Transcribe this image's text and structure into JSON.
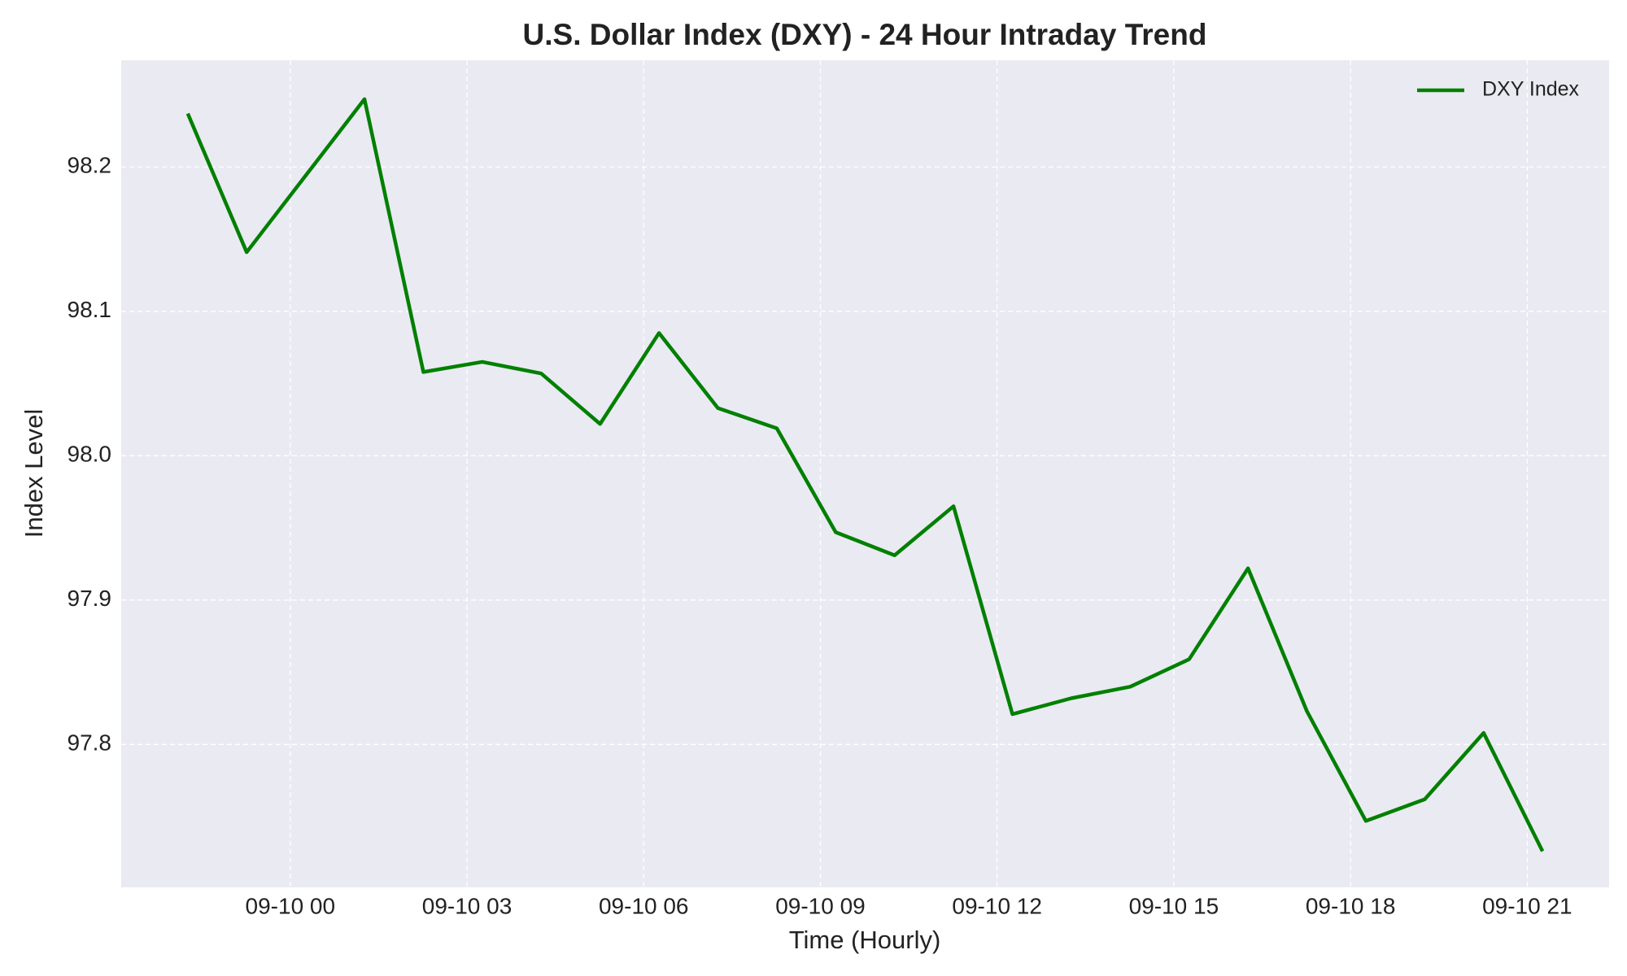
{
  "chart_data": {
    "type": "line",
    "title": "U.S. Dollar Index (DXY) - 24 Hour Intraday Trend",
    "x_label": "Time (Hourly)",
    "y_label": "Index Level",
    "x": [
      -1.74,
      -0.74,
      0.26,
      1.26,
      2.26,
      3.26,
      4.26,
      5.26,
      6.26,
      7.26,
      8.26,
      9.26,
      10.26,
      11.26,
      12.26,
      13.26,
      14.26,
      15.26,
      16.26,
      17.26,
      18.26,
      19.26,
      20.26,
      21.26
    ],
    "series": [
      {
        "name": "DXY Index",
        "color": "#008000",
        "values": [
          98.237,
          98.141,
          98.194,
          98.247,
          98.058,
          98.065,
          98.057,
          98.022,
          98.085,
          98.033,
          98.019,
          97.947,
          97.931,
          97.965,
          97.821,
          97.832,
          97.84,
          97.859,
          97.922,
          97.823,
          97.747,
          97.762,
          97.808,
          97.726
        ]
      }
    ],
    "xlim": [
      -2.87,
      22.39
    ],
    "xticks": [
      {
        "value": 0,
        "label": "09-10 00"
      },
      {
        "value": 3,
        "label": "09-10 03"
      },
      {
        "value": 6,
        "label": "09-10 06"
      },
      {
        "value": 9,
        "label": "09-10 09"
      },
      {
        "value": 12,
        "label": "09-10 12"
      },
      {
        "value": 15,
        "label": "09-10 15"
      },
      {
        "value": 18,
        "label": "09-10 18"
      },
      {
        "value": 21,
        "label": "09-10 21"
      }
    ],
    "ylim": [
      97.701,
      98.274
    ],
    "yticks": [
      {
        "value": 97.8,
        "label": "97.8"
      },
      {
        "value": 97.9,
        "label": "97.9"
      },
      {
        "value": 98.0,
        "label": "98.0"
      },
      {
        "value": 98.1,
        "label": "98.1"
      },
      {
        "value": 98.2,
        "label": "98.2"
      }
    ],
    "grid": true,
    "legend": "upper right"
  }
}
